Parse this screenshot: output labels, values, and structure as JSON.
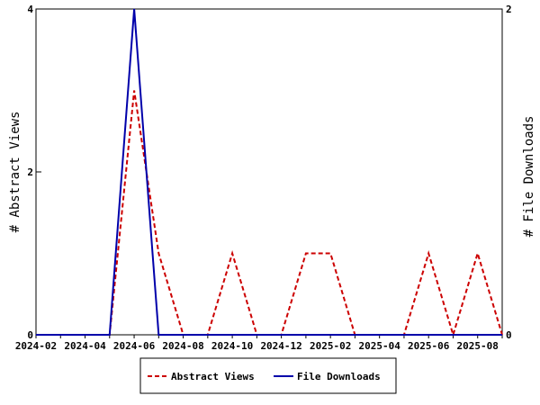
{
  "chart_data": {
    "type": "line",
    "x": [
      "2024-02",
      "2024-03",
      "2024-04",
      "2024-05",
      "2024-06",
      "2024-07",
      "2024-08",
      "2024-09",
      "2024-10",
      "2024-11",
      "2024-12",
      "2025-01",
      "2025-02",
      "2025-03",
      "2025-04",
      "2025-05",
      "2025-06",
      "2025-07",
      "2025-08",
      "2025-09"
    ],
    "x_ticks": [
      "2024-02",
      "2024-04",
      "2024-06",
      "2024-08",
      "2024-10",
      "2024-12",
      "2025-02",
      "2025-04",
      "2025-06",
      "2025-08"
    ],
    "series": [
      {
        "name": "Abstract Views",
        "axis": "left",
        "color": "#cc0000",
        "dash": true,
        "values": [
          0,
          0,
          0,
          0,
          3,
          1,
          0,
          0,
          1,
          0,
          0,
          1,
          1,
          0,
          0,
          0,
          1,
          0,
          1,
          0
        ]
      },
      {
        "name": "File Downloads",
        "axis": "right",
        "color": "#0000aa",
        "dash": false,
        "values": [
          0,
          0,
          0,
          0,
          2,
          0,
          0,
          0,
          0,
          0,
          0,
          0,
          0,
          0,
          0,
          0,
          0,
          0,
          0,
          0
        ]
      }
    ],
    "y_left": {
      "label": "# Abstract Views",
      "range": [
        0,
        4
      ],
      "ticks": [
        "0",
        "2",
        "4"
      ]
    },
    "y_right": {
      "label": "# File Downloads",
      "range": [
        0,
        2
      ],
      "ticks": [
        "0",
        "2"
      ]
    },
    "grid": false,
    "legend_position": "bottom"
  }
}
